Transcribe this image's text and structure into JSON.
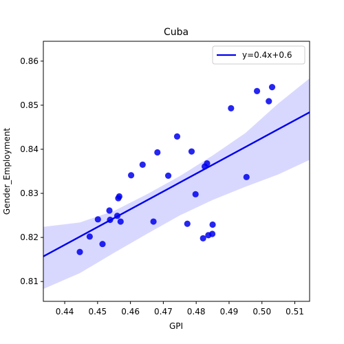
{
  "chart_data": {
    "type": "scatter",
    "title": "Cuba",
    "xlabel": "GPI",
    "ylabel": "Gender_Employment",
    "xlim": [
      0.4335,
      0.5145
    ],
    "ylim": [
      0.8055,
      0.8645
    ],
    "xticks": [
      "0.44",
      "0.45",
      "0.46",
      "0.47",
      "0.48",
      "0.49",
      "0.50",
      "0.51"
    ],
    "yticks": [
      "0.81",
      "0.82",
      "0.83",
      "0.84",
      "0.85",
      "0.86"
    ],
    "grid": false,
    "legend_position": "top-right",
    "legend_label": "y=0.4x+0.6",
    "point_color": "#0000ee",
    "line_color": "#0000ee",
    "band_color": "#d8d8ff",
    "points": [
      {
        "x": 0.4446,
        "y": 0.8167
      },
      {
        "x": 0.4476,
        "y": 0.8202
      },
      {
        "x": 0.4501,
        "y": 0.8241
      },
      {
        "x": 0.4515,
        "y": 0.8185
      },
      {
        "x": 0.4536,
        "y": 0.8261
      },
      {
        "x": 0.4538,
        "y": 0.824
      },
      {
        "x": 0.456,
        "y": 0.8249
      },
      {
        "x": 0.4563,
        "y": 0.8289
      },
      {
        "x": 0.4566,
        "y": 0.8293
      },
      {
        "x": 0.457,
        "y": 0.8236
      },
      {
        "x": 0.4602,
        "y": 0.8341
      },
      {
        "x": 0.4637,
        "y": 0.8365
      },
      {
        "x": 0.467,
        "y": 0.8236
      },
      {
        "x": 0.4682,
        "y": 0.8393
      },
      {
        "x": 0.4715,
        "y": 0.834
      },
      {
        "x": 0.4742,
        "y": 0.8429
      },
      {
        "x": 0.4773,
        "y": 0.8231
      },
      {
        "x": 0.4786,
        "y": 0.8395
      },
      {
        "x": 0.4798,
        "y": 0.8298
      },
      {
        "x": 0.4821,
        "y": 0.8198
      },
      {
        "x": 0.4826,
        "y": 0.8361
      },
      {
        "x": 0.4833,
        "y": 0.8368
      },
      {
        "x": 0.4837,
        "y": 0.8205
      },
      {
        "x": 0.4849,
        "y": 0.8208
      },
      {
        "x": 0.485,
        "y": 0.8229
      },
      {
        "x": 0.4906,
        "y": 0.8493
      },
      {
        "x": 0.4953,
        "y": 0.8337
      },
      {
        "x": 0.4985,
        "y": 0.8532
      },
      {
        "x": 0.5021,
        "y": 0.8509
      },
      {
        "x": 0.5031,
        "y": 0.8541
      }
    ],
    "fit": {
      "x": [
        0.4335,
        0.5145
      ],
      "y": [
        0.8157,
        0.8484
      ]
    },
    "confidence_band": {
      "x": [
        0.4335,
        0.4446,
        0.455,
        0.465,
        0.475,
        0.485,
        0.495,
        0.505,
        0.5145
      ],
      "upper": [
        0.8224,
        0.8234,
        0.826,
        0.8298,
        0.8339,
        0.8386,
        0.8437,
        0.8504,
        0.8561
      ],
      "lower": [
        0.8083,
        0.8119,
        0.8165,
        0.8208,
        0.825,
        0.8285,
        0.8315,
        0.8343,
        0.8376
      ]
    }
  }
}
